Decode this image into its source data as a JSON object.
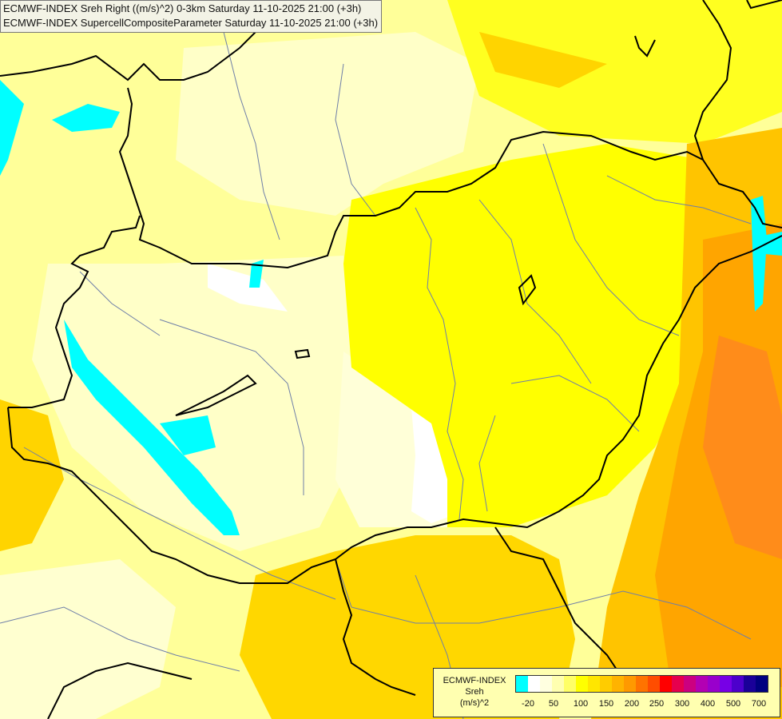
{
  "header": {
    "line1": "ECMWF-INDEX Sreh Right ((m/s)^2) 0-3km Saturday 11-10-2025 21:00 (+3h)",
    "line2": "ECMWF-INDEX SupercellCompositeParameter Saturday 11-10-2025 21:00 (+3h)"
  },
  "legend": {
    "title_line1": "ECMWF-INDEX",
    "title_line2": "Sreh",
    "title_line3": "(m/s)^2",
    "tick_labels": [
      "-20",
      "50",
      "100",
      "150",
      "200",
      "250",
      "300",
      "400",
      "500",
      "700"
    ],
    "colors": [
      "#00ffff",
      "#ffffff",
      "#ffffe0",
      "#ffffb0",
      "#ffff66",
      "#ffff00",
      "#ffe600",
      "#ffcc00",
      "#ffb300",
      "#ff9900",
      "#ff7300",
      "#ff4d00",
      "#ff0000",
      "#e6004d",
      "#cc0080",
      "#b300b3",
      "#9900cc",
      "#7700e6",
      "#4d00cc",
      "#1a0099",
      "#000080"
    ]
  },
  "colors": {
    "pale": "#ffffc0",
    "light_yellow": "#ffff80",
    "yellow": "#ffff00",
    "gold": "#ffd700",
    "orange": "#ffa500",
    "cyan": "#00ffff"
  }
}
